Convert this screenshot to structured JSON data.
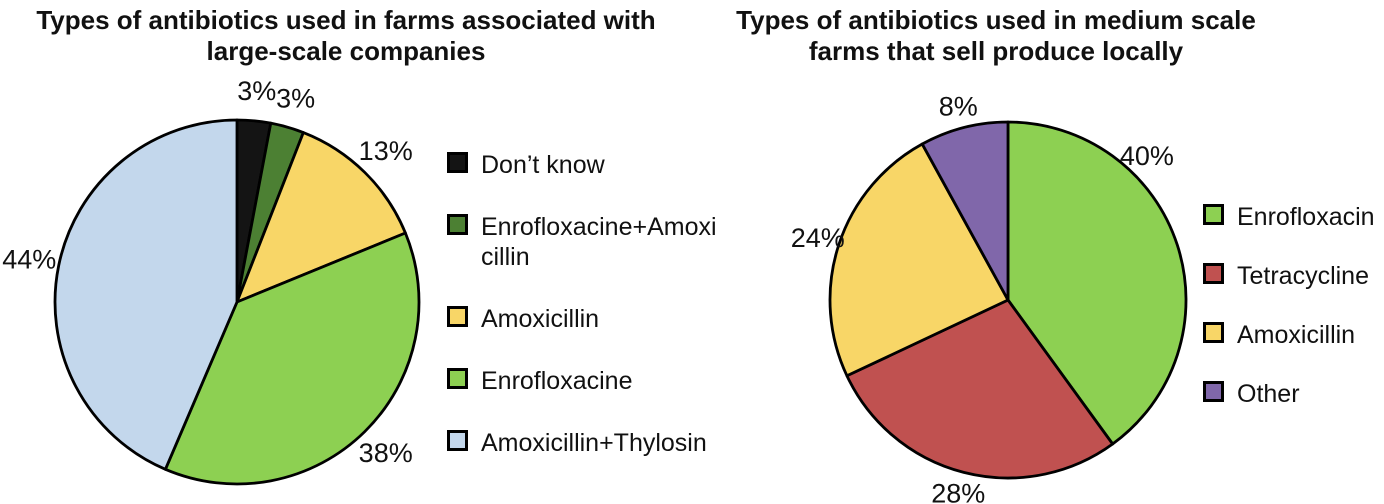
{
  "style": {
    "background": "#ffffff",
    "text_color": "#111111",
    "slice_stroke_color": "#000000"
  },
  "chart_data": [
    {
      "type": "pie",
      "title": "Types of antibiotics used in farms associated with\nlarge-scale companies",
      "labels": [
        "Don’t know",
        "Enrofloxacine+Amoxi\ncillin",
        "Amoxicillin",
        "Enrofloxacine",
        "Amoxicillin+Thylosin"
      ],
      "values": [
        3,
        3,
        13,
        38,
        44
      ],
      "pct_labels": [
        "3%",
        "3%",
        "13%",
        "38%",
        "44%"
      ],
      "colors": [
        "#141414",
        "#4c8033",
        "#f8d667",
        "#8dd052",
        "#c3d7ec"
      ],
      "start_angle_deg": 0,
      "direction": "clockwise",
      "legend_position": "right",
      "label_angles_deg": [
        null,
        null,
        null,
        null,
        null
      ]
    },
    {
      "type": "pie",
      "title": "Types of antibiotics used in medium scale\nfarms that sell produce locally",
      "labels": [
        "Enrofloxacin",
        "Tetracycline",
        "Amoxicillin",
        "Other"
      ],
      "values": [
        40,
        28,
        24,
        8
      ],
      "pct_labels": [
        "40%",
        "28%",
        "24%",
        "8%"
      ],
      "colors": [
        "#8dd052",
        "#c05150",
        "#f8d667",
        "#8067aa"
      ],
      "start_angle_deg": 0,
      "direction": "clockwise",
      "legend_position": "right",
      "label_angles_deg": [
        44,
        null,
        null,
        null
      ]
    }
  ]
}
